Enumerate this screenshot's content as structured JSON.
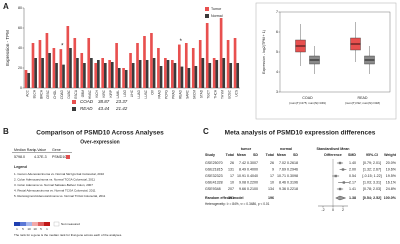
{
  "chart_data": [
    {
      "type": "bar",
      "label": "A",
      "y_label": "Expression - TPM",
      "categories": [
        "ACC",
        "BLCA",
        "BRCA",
        "CESC",
        "CHOL",
        "COAD",
        "DLBC",
        "ESCA",
        "GBM",
        "HNSC",
        "KICH",
        "KIRC",
        "KIRP",
        "LAML",
        "LGG",
        "LIHC",
        "LUAD",
        "LUSC",
        "OV",
        "PAAD",
        "PCPG",
        "PRAD",
        "READ",
        "SARC",
        "SKCM",
        "STAD",
        "TGCT",
        "THCA",
        "THYM",
        "UCEC",
        "UCS"
      ],
      "series": [
        {
          "name": "Tumor",
          "color": "#e8504f",
          "values": [
            18,
            45,
            48,
            55,
            40,
            38.87,
            62,
            50,
            35,
            50,
            25,
            30,
            28,
            45,
            20,
            35,
            45,
            52,
            55,
            40,
            30,
            28,
            43.44,
            45,
            40,
            48,
            65,
            30,
            70,
            48,
            50
          ]
        },
        {
          "name": "Normal",
          "color": "#3a3a3a",
          "values": [
            15,
            30,
            30,
            35,
            25,
            23.37,
            40,
            30,
            25,
            30,
            28,
            25,
            26,
            20,
            18,
            25,
            28,
            28,
            30,
            22,
            28,
            25,
            21.42,
            20,
            22,
            30,
            25,
            28,
            30,
            25,
            25
          ]
        }
      ],
      "ylim": [
        0,
        80
      ],
      "yticks": [
        0,
        20,
        40,
        60,
        80
      ],
      "significance": "*",
      "table": [
        {
          "name": "COAD",
          "tumor": 38.87,
          "normal": 23.37
        },
        {
          "name": "READ",
          "tumor": 43.44,
          "normal": 21.42
        }
      ]
    },
    {
      "type": "box",
      "y_label": "Expression - log2(TPM + 1)",
      "categories": [
        "COAD",
        "READ"
      ],
      "category_notes": [
        "(num(T)=275; num(N)=349)",
        "(num(T)=92; num(N)=318)"
      ],
      "series": [
        {
          "name": "Tumor",
          "color": "#e8504f",
          "boxes": [
            {
              "min": 4.3,
              "q1": 5.0,
              "median": 5.3,
              "q3": 5.6,
              "max": 6.4
            },
            {
              "min": 4.5,
              "q1": 5.1,
              "median": 5.4,
              "q3": 5.7,
              "max": 6.5
            }
          ]
        },
        {
          "name": "Normal",
          "color": "#8a8a8a",
          "boxes": [
            {
              "min": 3.9,
              "q1": 4.4,
              "median": 4.6,
              "q3": 4.8,
              "max": 5.3
            },
            {
              "min": 3.9,
              "q1": 4.4,
              "median": 4.6,
              "q3": 4.8,
              "max": 5.3
            }
          ]
        }
      ],
      "ylim": [
        3,
        7
      ],
      "yticks": [
        3,
        4,
        5,
        6,
        7
      ]
    },
    {
      "type": "forest",
      "values": [
        1.4,
        2.0,
        0.54,
        2.17,
        1.41
      ],
      "value_labels": [
        "1.40",
        "2.00",
        "0.54",
        "2.17",
        "1.41"
      ],
      "ci": [
        [
          0.79,
          2.01
        ],
        [
          1.32,
          2.67
        ],
        [
          -0.15,
          1.22
        ],
        [
          1.03,
          3.31
        ],
        [
          0.78,
          2.03
        ]
      ],
      "pooled": 1.38,
      "pooled_ci": [
        0.54,
        2.52
      ],
      "xlim": [
        -3,
        3
      ],
      "xticks": [
        -2,
        0,
        2
      ]
    }
  ],
  "panel_b": {
    "label": "B",
    "title": "Comparison of PSMD10 Across Analyses",
    "subtitle": "Over-expression",
    "columns": [
      "Median Rank",
      "p-Value",
      "Gene"
    ],
    "row": [
      "5798.0",
      "4.37E-3",
      "PSMD10"
    ],
    "legend_title": "Legend",
    "legend": [
      "1. Cecum Adenocarcinoma vs. Normal  Skrzypczak Colorectal, 2010",
      "2. Colon Adenocarcinoma vs. Normal  TCGA Colorectal, 2011",
      "3. Colon Adenoma vs. Normal  Sabates-Bellver Colon, 2007",
      "4. Rectal Adenocarcinoma vs. Normal  TCGA Colorectal, 2011",
      "5. Rectosigmoid Adenocarcinoma vs. Normal  TCGA Colorectal, 2011"
    ],
    "scale": [
      "1",
      "5",
      "10",
      "10",
      "5",
      "1"
    ],
    "not_measured": "Not measured",
    "footnote": "The rank for a gene is the median rank for that gene across each of the analyses."
  },
  "panel_c": {
    "label": "C",
    "title": "Meta analysis of PSMD10 expression differences",
    "group_headers": [
      "tumor",
      "normal",
      "Standardised Mean"
    ],
    "columns": [
      "Study",
      "Total",
      "Mean",
      "SD",
      "Total",
      "Mean",
      "SD",
      "Difference",
      "SMD",
      "95%-CI",
      "Weight"
    ],
    "rows": [
      [
        "GSE25070",
        "26",
        "7.42",
        "0.3007",
        "26",
        "7.02",
        "0.2618",
        "[0.79; 2.01]",
        "20.0%"
      ],
      [
        "GSE21815",
        "131",
        "8.49",
        "0.4000",
        "9",
        "7.69",
        "0.2946",
        "[1.32; 2.67]",
        "19.6%"
      ],
      [
        "GSE32323",
        "17",
        "10.91",
        "0.4040",
        "17",
        "10.71",
        "0.3098",
        "[-0.15; 1.22]",
        "19.5%"
      ],
      [
        "GSE41328",
        "10",
        "9.08",
        "0.2200",
        "10",
        "8.46",
        "0.3196",
        "[1.03; 3.31]",
        "16.1%"
      ],
      [
        "GSE9348",
        "207",
        "9.66",
        "0.2100",
        "134",
        "9.36",
        "0.2218",
        "[0.78; 2.03]",
        "24.8%"
      ]
    ],
    "summary": [
      "Random effects model",
      "391",
      "196",
      "1.38",
      "[0.54; 2.52]",
      "100.0%"
    ],
    "heterogeneity": "Heterogeneity: I² = 84%, τ² = 0.3486, p < 0.01"
  }
}
